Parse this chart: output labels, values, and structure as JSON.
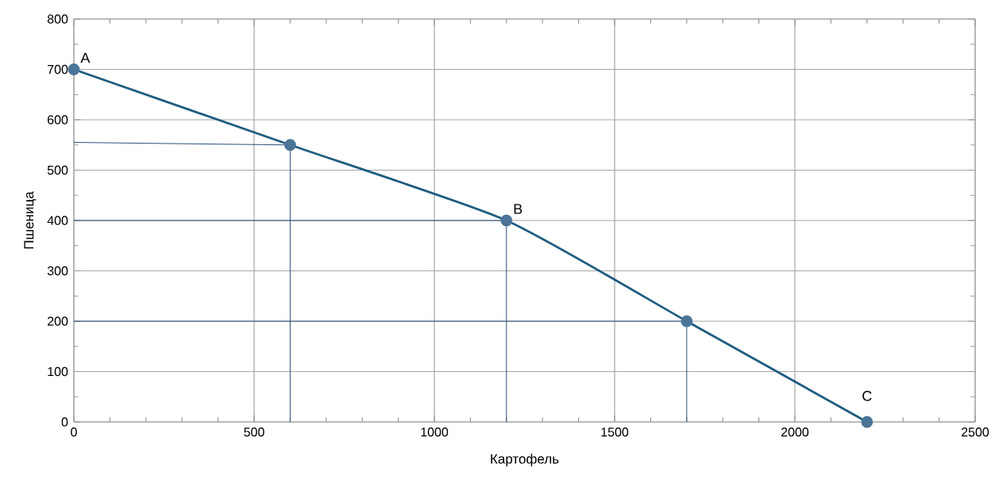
{
  "chart_data": {
    "type": "line",
    "xlabel": "Картофель",
    "ylabel": "Пшеница",
    "series": [
      {
        "x": [
          0,
          600,
          1200,
          1700,
          2200
        ],
        "values": [
          700,
          550,
          400,
          200,
          0
        ],
        "color": "#1f5c80",
        "marker": "circle"
      },
      {
        "x": [
          0,
          600,
          600
        ],
        "values": [
          555,
          550,
          0
        ],
        "color": "#2b4f7a",
        "marker": "none"
      },
      {
        "x": [
          0,
          1200,
          1200
        ],
        "values": [
          400,
          400,
          0
        ],
        "color": "#2b4f7a",
        "marker": "none"
      },
      {
        "x": [
          0,
          1700,
          1700
        ],
        "values": [
          200,
          200,
          0
        ],
        "color": "#2b4f7a",
        "marker": "none"
      }
    ],
    "annotations": [
      {
        "text": "A",
        "x": 0,
        "y": 700
      },
      {
        "text": "B",
        "x": 1200,
        "y": 400
      },
      {
        "text": "C",
        "x": 2200,
        "y": 0
      }
    ],
    "xlim": [
      0,
      2500
    ],
    "ylim": [
      0,
      800
    ],
    "xticks": [
      0,
      500,
      1000,
      1500,
      2000,
      2500
    ],
    "yticks": [
      0,
      100,
      200,
      300,
      400,
      500,
      600,
      700,
      800
    ],
    "grid": true
  }
}
